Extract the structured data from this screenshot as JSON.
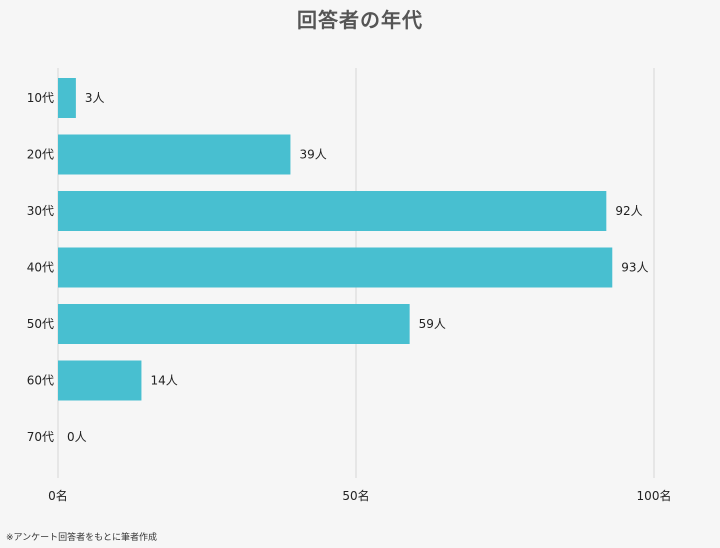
{
  "title": "回答者の年代",
  "source_note": "※アンケート回答者をもとに筆者作成",
  "colors": {
    "bar": "#48bfd0",
    "grid": "#d6d6d6",
    "text": "#222222",
    "title": "#555555",
    "background": "#f6f6f6"
  },
  "chart_data": {
    "type": "bar",
    "orientation": "horizontal",
    "categories": [
      "10代",
      "20代",
      "30代",
      "40代",
      "50代",
      "60代",
      "70代"
    ],
    "values": [
      3,
      39,
      92,
      93,
      59,
      14,
      0
    ],
    "data_labels": [
      "3人",
      "39人",
      "92人",
      "93人",
      "59人",
      "14人",
      "0人"
    ],
    "xlim": [
      0,
      100
    ],
    "x_ticks": [
      0,
      50,
      100
    ],
    "x_tick_labels": [
      "0名",
      "50名",
      "100名"
    ],
    "grid": true,
    "legend": "none"
  }
}
